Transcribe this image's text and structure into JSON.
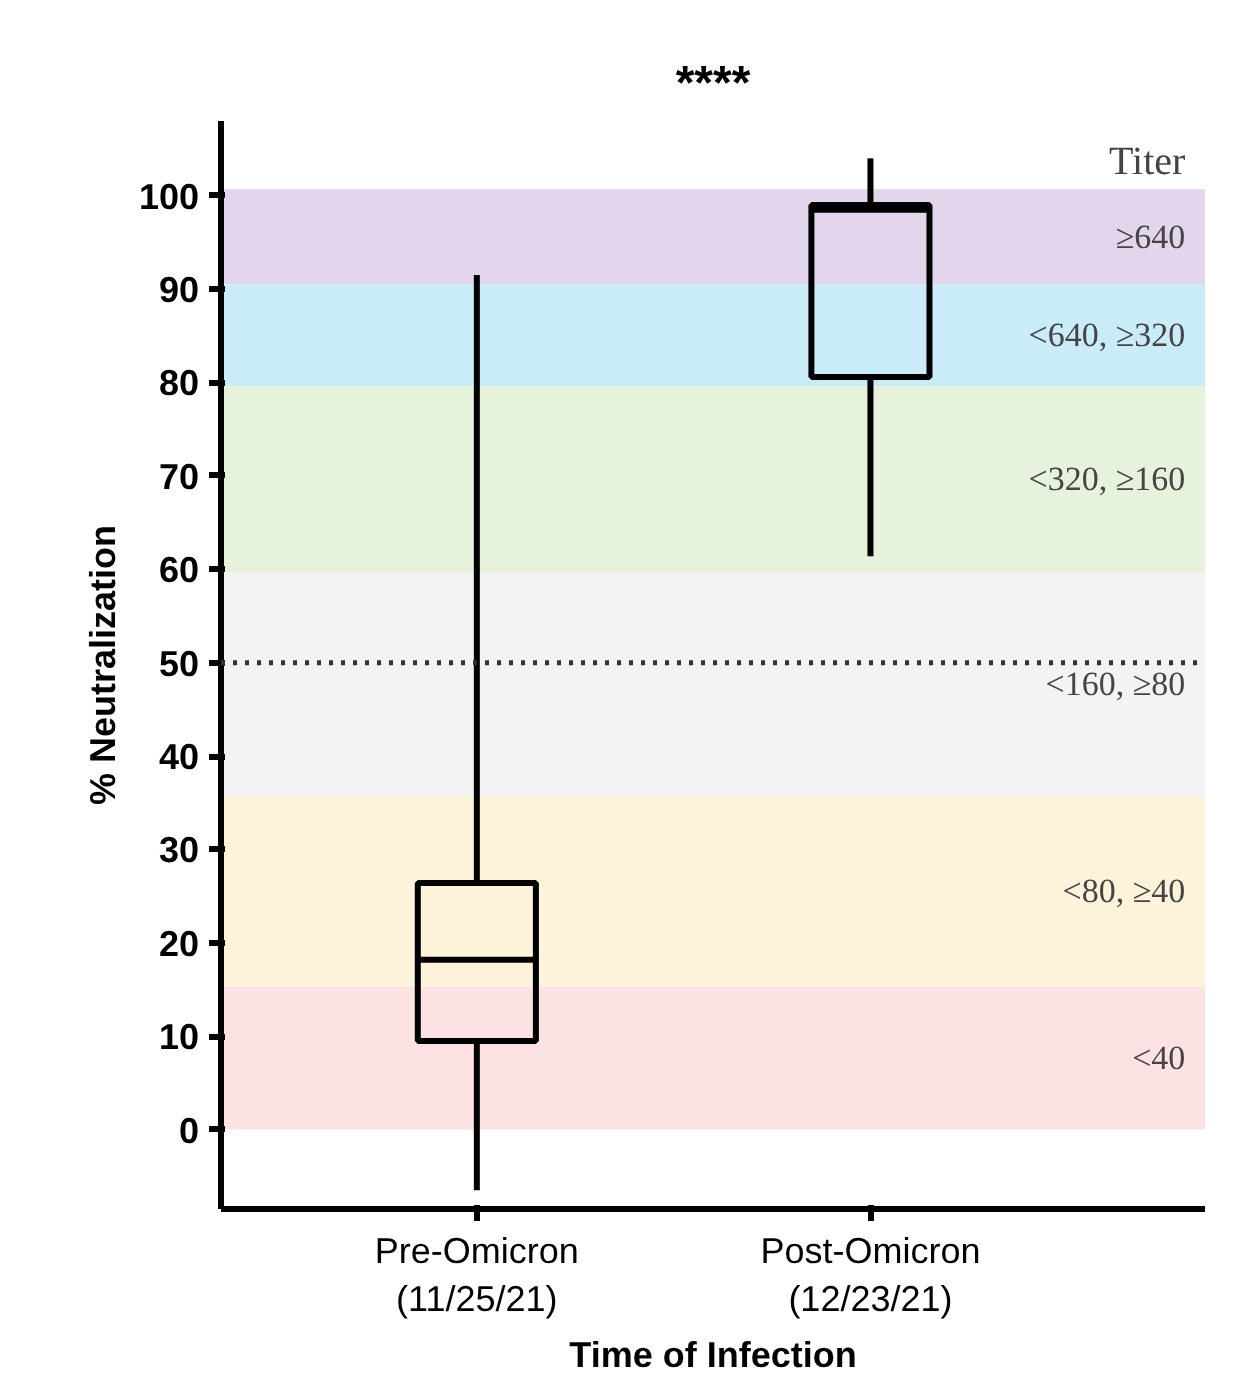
{
  "chart_data": {
    "type": "box",
    "title": "****",
    "xlabel": "Time of Infection",
    "ylabel": "% Neutralization",
    "categories": [
      "Pre-Omicron\n(11/25/21)",
      "Post-Omicron\n(12/23/21)"
    ],
    "boxes": [
      {
        "low": -6.5,
        "q1": 9.5,
        "median": 18.2,
        "q3": 26.4,
        "high": 91.5
      },
      {
        "low": 61.4,
        "q1": 80.6,
        "median": 98.5,
        "q3": 99.0,
        "high": 104
      }
    ],
    "color": "#000000",
    "ylim": [
      -8.5,
      108
    ],
    "yticks": [
      0,
      10,
      20,
      30,
      40,
      50,
      60,
      70,
      80,
      90,
      100
    ],
    "grid": false,
    "bands": [
      {
        "axis": "y",
        "from": 90.5,
        "to": 100.7,
        "label": "≥640",
        "color": "#e2d5ec"
      },
      {
        "axis": "y",
        "from": 79.6,
        "to": 90.5,
        "label": "<640, ≥320",
        "color": "#c9ecf8"
      },
      {
        "axis": "y",
        "from": 59.7,
        "to": 79.6,
        "label": "<320, ≥160",
        "color": "#e6f2db"
      },
      {
        "axis": "y",
        "from": 35.7,
        "to": 59.7,
        "label": "<160, ≥80",
        "color": "#f3f3f3"
      },
      {
        "axis": "y",
        "from": 15.3,
        "to": 35.7,
        "label": "<80, ≥40",
        "color": "#fdf3da"
      },
      {
        "axis": "y",
        "from": 0,
        "to": 15.3,
        "label": "<40",
        "color": "#fde2e4"
      }
    ],
    "ref_lines": [
      {
        "axis": "y",
        "value": 50,
        "line_style": "dotted",
        "color": "#333333"
      }
    ],
    "annotations": [
      "Titer"
    ]
  }
}
